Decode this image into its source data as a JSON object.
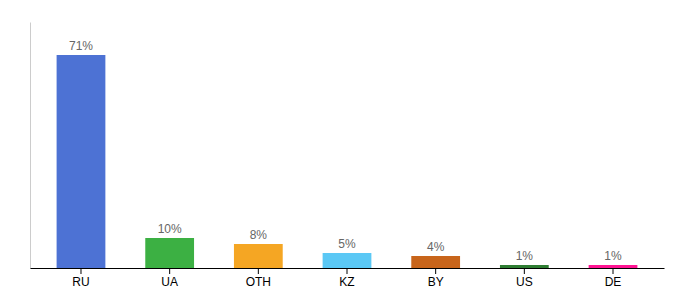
{
  "chart_data": {
    "type": "bar",
    "categories": [
      "RU",
      "UA",
      "OTH",
      "KZ",
      "BY",
      "US",
      "DE"
    ],
    "values": [
      71,
      10,
      8,
      5,
      4,
      1,
      1
    ],
    "value_labels": [
      "71%",
      "10%",
      "8%",
      "5%",
      "4%",
      "1%",
      "1%"
    ],
    "colors": [
      "#4d72d4",
      "#3cb043",
      "#f5a623",
      "#5bc8f5",
      "#c8651b",
      "#2e7d32",
      "#ff1493"
    ],
    "ylim": [
      0,
      82
    ],
    "data_labels": true,
    "tick_labels": "x"
  }
}
